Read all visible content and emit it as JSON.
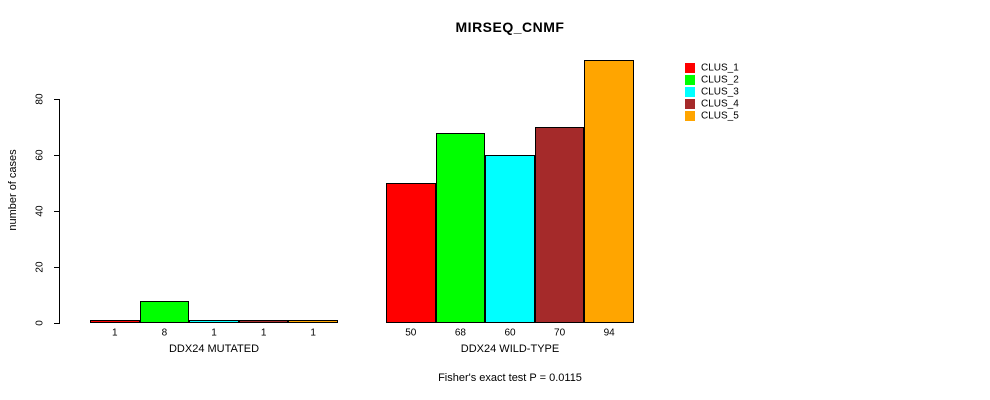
{
  "chart_data": {
    "type": "bar",
    "title": "MIRSEQ_CNMF",
    "ylabel": "number of cases",
    "xlabel": "",
    "categories": [
      "DDX24 MUTATED",
      "DDX24 WILD-TYPE"
    ],
    "series": [
      {
        "name": "CLUS_1",
        "color": "#ff0000",
        "values": [
          1,
          50
        ]
      },
      {
        "name": "CLUS_2",
        "color": "#00ff00",
        "values": [
          8,
          68
        ]
      },
      {
        "name": "CLUS_3",
        "color": "#00ffff",
        "values": [
          1,
          60
        ]
      },
      {
        "name": "CLUS_4",
        "color": "#a52a2a",
        "values": [
          1,
          70
        ]
      },
      {
        "name": "CLUS_5",
        "color": "#ffa500",
        "values": [
          1,
          94
        ]
      }
    ],
    "bar_value_labels": [
      [
        "1",
        "8",
        "1",
        "1",
        "1"
      ],
      [
        "50",
        "68",
        "60",
        "70",
        "94"
      ]
    ],
    "yticks": [
      "0",
      "20",
      "40",
      "60",
      "80"
    ],
    "ylim": [
      0,
      94
    ],
    "grid": false,
    "legend_position": "top-right",
    "bar_border_color": "#000000",
    "axis_color": "#000000",
    "annotation": "Fisher's exact test P = 0.0115"
  }
}
